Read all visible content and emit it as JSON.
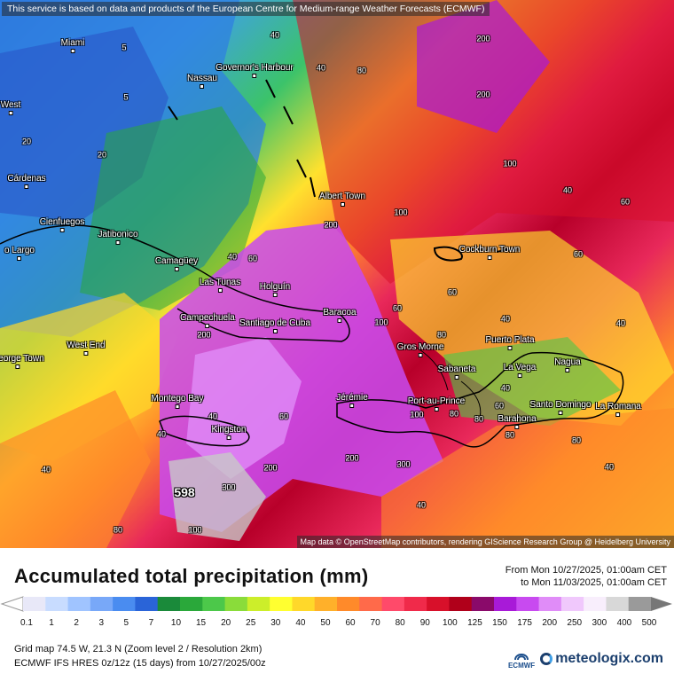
{
  "credits": {
    "top": "This service is based on data and products of the European Centre for Medium-range Weather Forecasts (ECMWF)",
    "bottom": "Map data © OpenStreetMap contributors, rendering GIScience Research Group @ Heidelberg University"
  },
  "places": [
    {
      "name": "Miami"
    },
    {
      "name": "Nassau"
    },
    {
      "name": "Governor's Harbour"
    },
    {
      "name": "West"
    },
    {
      "name": "Cárdenas"
    },
    {
      "name": "Cienfuegos"
    },
    {
      "name": "Jatibonico"
    },
    {
      "name": "o Largo"
    },
    {
      "name": "Camagüey"
    },
    {
      "name": "Albert Town"
    },
    {
      "name": "Cockburn Town"
    },
    {
      "name": "Las Tunas"
    },
    {
      "name": "Holguín"
    },
    {
      "name": "Campechuela"
    },
    {
      "name": "Santiago de Cuba"
    },
    {
      "name": "Baracoa"
    },
    {
      "name": "West End"
    },
    {
      "name": "George Town"
    },
    {
      "name": "Gros Morne"
    },
    {
      "name": "Puerto Plata"
    },
    {
      "name": "Sabaneta"
    },
    {
      "name": "La Vega"
    },
    {
      "name": "Nagua"
    },
    {
      "name": "Montego Bay"
    },
    {
      "name": "Jérémie"
    },
    {
      "name": "Port-au-Prince"
    },
    {
      "name": "Santo Domingo"
    },
    {
      "name": "La Romana"
    },
    {
      "name": "Barahona"
    },
    {
      "name": "Kingston"
    }
  ],
  "contour_labels": [
    "40",
    "40",
    "80",
    "200",
    "5",
    "5",
    "20",
    "20",
    "40",
    "60",
    "100",
    "200",
    "200",
    "100",
    "60",
    "60",
    "60",
    "40",
    "100",
    "200",
    "300",
    "40",
    "40",
    "40",
    "60",
    "80",
    "40",
    "80",
    "200",
    "80",
    "100",
    "300",
    "200",
    "80",
    "60",
    "40",
    "40",
    "40",
    "40",
    "80",
    "100",
    "80",
    "60"
  ],
  "max_value": "598",
  "footer": {
    "title": "Accumulated total precipitation (mm)",
    "from": "From Mon 10/27/2025, 01:00am CET",
    "to": "to Mon 11/03/2025, 01:00am CET",
    "grid": "Grid map 74.5 W, 21.3 N (Zoom level 2 / Resolution 2km)",
    "model": "ECMWF IFS HRES 0z/12z (15 days) from 10/27/2025/00z",
    "ecmwf_label": "ECMWF",
    "brand": "meteologix.com"
  },
  "legend": {
    "ticks": [
      "0.1",
      "1",
      "2",
      "3",
      "5",
      "7",
      "10",
      "15",
      "20",
      "25",
      "30",
      "40",
      "50",
      "60",
      "70",
      "80",
      "90",
      "100",
      "125",
      "150",
      "175",
      "200",
      "250",
      "300",
      "400",
      "500"
    ],
    "colors": [
      "#e8e8f8",
      "#c8dcff",
      "#a0c4ff",
      "#78a8f8",
      "#4a8cf0",
      "#2a64d8",
      "#1a8a3a",
      "#2aa83a",
      "#4cc84a",
      "#8adc3a",
      "#ccee2a",
      "#ffff30",
      "#ffd82a",
      "#ffb02a",
      "#ff8a2a",
      "#ff6a4a",
      "#ff4a6a",
      "#f02a4a",
      "#d8102a",
      "#b0001a",
      "#8a0a6a",
      "#a81ad8",
      "#c84af0",
      "#e08cf8",
      "#f0c8fc",
      "#f8eefc",
      "#d8d8d8",
      "#9a9a9a"
    ]
  }
}
